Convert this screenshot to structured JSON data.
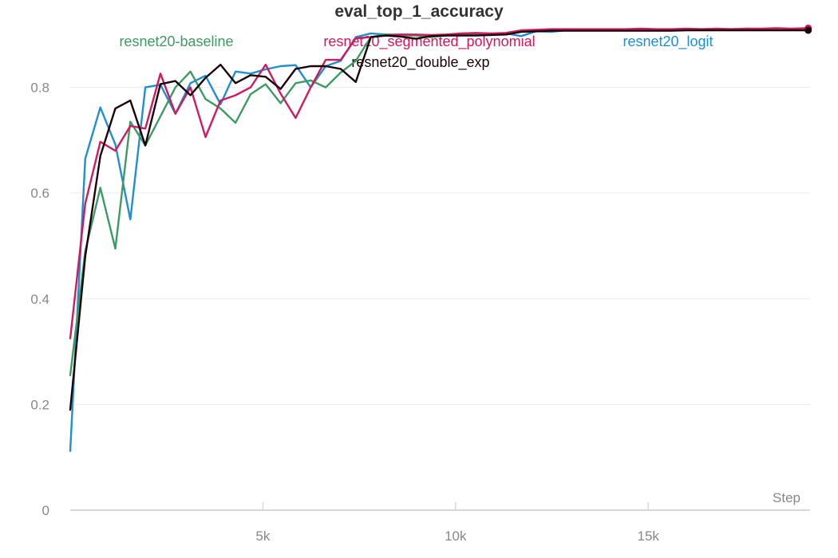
{
  "chart_data": {
    "type": "line",
    "title": "eval_top_1_accuracy",
    "xlabel": "Step",
    "ylabel": "",
    "xlim": [
      0,
      19200
    ],
    "ylim": [
      0,
      0.92
    ],
    "yticks": [
      0,
      0.2,
      0.4,
      0.6,
      0.8
    ],
    "ytick_labels": [
      "0",
      "0.2",
      "0.4",
      "0.6",
      "0.8"
    ],
    "xticks": [
      5000,
      10000,
      15000
    ],
    "xtick_labels": [
      "5k",
      "10k",
      "15k"
    ],
    "grid": true,
    "legend_position": "top",
    "series": [
      {
        "name": "resnet20-baseline",
        "color": "#3e9a63",
        "x": [
          0,
          390,
          780,
          1170,
          1560,
          1950,
          2340,
          2730,
          3120,
          3510,
          3900,
          4290,
          4680,
          5070,
          5460,
          5850,
          6240,
          6630,
          7020,
          7410,
          7800,
          8190,
          8580,
          8970,
          9360,
          9750,
          10140,
          10530,
          10920,
          11310,
          11700,
          12090,
          12480,
          12870,
          13260,
          13650,
          14040,
          14430,
          14820,
          15210,
          15600,
          15990,
          16380,
          16770,
          17160,
          17550,
          17940,
          18330,
          18720,
          19110
        ],
        "y": [
          0.255,
          0.49,
          0.61,
          0.495,
          0.735,
          0.69,
          0.745,
          0.8,
          0.83,
          0.778,
          0.76,
          0.733,
          0.787,
          0.806,
          0.77,
          0.808,
          0.813,
          0.8,
          0.828,
          0.85,
          0.895,
          0.9,
          0.898,
          0.898,
          0.895,
          0.898,
          0.9,
          0.899,
          0.9,
          0.901,
          0.905,
          0.907,
          0.907,
          0.908,
          0.908,
          0.909,
          0.909,
          0.909,
          0.909,
          0.909,
          0.909,
          0.91,
          0.91,
          0.91,
          0.91,
          0.911,
          0.91,
          0.91,
          0.91,
          0.91
        ]
      },
      {
        "name": "resnet20_segmented_polynomial",
        "color": "#d11a5e",
        "x": [
          0,
          390,
          780,
          1170,
          1560,
          1950,
          2340,
          2730,
          3120,
          3510,
          3900,
          4290,
          4680,
          5070,
          5460,
          5850,
          6240,
          6630,
          7020,
          7410,
          7800,
          8190,
          8580,
          8970,
          9360,
          9750,
          10140,
          10530,
          10920,
          11310,
          11700,
          12090,
          12480,
          12870,
          13260,
          13650,
          14040,
          14430,
          14820,
          15210,
          15600,
          15990,
          16380,
          16770,
          17160,
          17550,
          17940,
          18330,
          18720,
          19110
        ],
        "y": [
          0.325,
          0.58,
          0.697,
          0.68,
          0.727,
          0.722,
          0.826,
          0.75,
          0.8,
          0.706,
          0.775,
          0.785,
          0.8,
          0.843,
          0.788,
          0.742,
          0.8,
          0.852,
          0.852,
          0.893,
          0.895,
          0.898,
          0.9,
          0.9,
          0.899,
          0.9,
          0.902,
          0.903,
          0.902,
          0.903,
          0.908,
          0.909,
          0.91,
          0.91,
          0.91,
          0.91,
          0.91,
          0.91,
          0.911,
          0.91,
          0.91,
          0.911,
          0.91,
          0.911,
          0.91,
          0.911,
          0.911,
          0.912,
          0.911,
          0.912
        ]
      },
      {
        "name": "resnet20_logit",
        "color": "#1f8fd0",
        "x": [
          0,
          390,
          780,
          1170,
          1560,
          1950,
          2340,
          2730,
          3120,
          3510,
          3900,
          4290,
          4680,
          5070,
          5460,
          5850,
          6240,
          6630,
          7020,
          7410,
          7800,
          8190,
          8580,
          8970,
          9360,
          9750,
          10140,
          10530,
          10920,
          11310,
          11700,
          12090,
          12480,
          12870,
          13260,
          13650,
          14040,
          14430,
          14820,
          15210,
          15600,
          15990,
          16380,
          16770,
          17160,
          17550,
          17940,
          18330,
          18720,
          19110
        ],
        "y": [
          0.112,
          0.665,
          0.762,
          0.692,
          0.55,
          0.8,
          0.805,
          0.75,
          0.808,
          0.822,
          0.768,
          0.83,
          0.826,
          0.834,
          0.84,
          0.842,
          0.8,
          0.84,
          0.85,
          0.895,
          0.902,
          0.9,
          0.9,
          0.899,
          0.898,
          0.899,
          0.899,
          0.9,
          0.899,
          0.902,
          0.897,
          0.906,
          0.905,
          0.908,
          0.908,
          0.908,
          0.908,
          0.909,
          0.909,
          0.909,
          0.909,
          0.909,
          0.909,
          0.91,
          0.909,
          0.909,
          0.91,
          0.909,
          0.909,
          0.909
        ]
      },
      {
        "name": "resnet20_double_exp",
        "color": "#1a0309",
        "x": [
          0,
          390,
          780,
          1170,
          1560,
          1950,
          2340,
          2730,
          3120,
          3510,
          3900,
          4290,
          4680,
          5070,
          5460,
          5850,
          6240,
          6630,
          7020,
          7410,
          7800,
          8190,
          8580,
          8970,
          9360,
          9750,
          10140,
          10530,
          10920,
          11310,
          11700,
          12090,
          12480,
          12870,
          13260,
          13650,
          14040,
          14430,
          14820,
          15210,
          15600,
          15990,
          16380,
          16770,
          17160,
          17550,
          17940,
          18330,
          18720,
          19110
        ],
        "y": [
          0.19,
          0.48,
          0.67,
          0.76,
          0.775,
          0.69,
          0.806,
          0.812,
          0.785,
          0.818,
          0.843,
          0.808,
          0.823,
          0.82,
          0.797,
          0.835,
          0.84,
          0.84,
          0.835,
          0.81,
          0.895,
          0.898,
          0.896,
          0.892,
          0.897,
          0.898,
          0.898,
          0.898,
          0.899,
          0.9,
          0.905,
          0.906,
          0.907,
          0.907,
          0.907,
          0.907,
          0.907,
          0.907,
          0.907,
          0.907,
          0.907,
          0.908,
          0.908,
          0.908,
          0.908,
          0.908,
          0.908,
          0.908,
          0.908,
          0.908
        ]
      }
    ]
  }
}
